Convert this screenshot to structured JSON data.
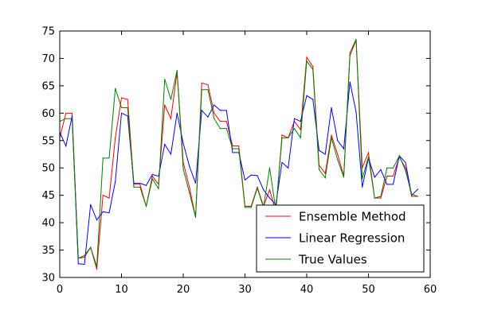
{
  "chart_data": {
    "type": "line",
    "title": "",
    "xlabel": "",
    "ylabel": "",
    "xlim": [
      0,
      60
    ],
    "ylim": [
      30,
      75
    ],
    "xticks": [
      0,
      10,
      20,
      30,
      40,
      50,
      60
    ],
    "yticks": [
      30,
      35,
      40,
      45,
      50,
      55,
      60,
      65,
      70,
      75
    ],
    "grid": false,
    "legend_position": "lower-right",
    "x": [
      0,
      1,
      2,
      3,
      4,
      5,
      6,
      7,
      8,
      9,
      10,
      11,
      12,
      13,
      14,
      15,
      16,
      17,
      18,
      19,
      20,
      21,
      22,
      23,
      24,
      25,
      26,
      27,
      28,
      29,
      30,
      31,
      32,
      33,
      34,
      35,
      36,
      37,
      38,
      39,
      40,
      41,
      42,
      43,
      44,
      45,
      46,
      47,
      48,
      49,
      50,
      51,
      52,
      53,
      54,
      55,
      56,
      57,
      58
    ],
    "series": [
      {
        "name": "Ensemble Method",
        "color": "#ff0000",
        "values": [
          55.5,
          60.0,
          60.0,
          33.5,
          33.7,
          35.5,
          31.5,
          45.0,
          44.5,
          55.5,
          62.8,
          62.5,
          47.0,
          47.0,
          43.0,
          48.5,
          47.0,
          61.5,
          59.0,
          67.5,
          51.0,
          46.5,
          41.0,
          65.5,
          65.2,
          60.0,
          58.5,
          58.5,
          54.0,
          54.0,
          43.0,
          43.0,
          46.5,
          43.0,
          46.0,
          42.0,
          56.0,
          55.5,
          58.5,
          57.0,
          70.2,
          68.5,
          50.5,
          49.0,
          56.0,
          52.5,
          48.5,
          70.5,
          73.3,
          50.0,
          52.8,
          44.5,
          44.5,
          48.5,
          48.5,
          52.0,
          50.0,
          44.8,
          44.8
        ]
      },
      {
        "name": "Linear Regression",
        "color": "#0000ff",
        "values": [
          56.5,
          54.0,
          59.5,
          32.5,
          32.4,
          43.3,
          40.5,
          42.0,
          41.8,
          47.5,
          60.0,
          59.5,
          47.2,
          47.2,
          46.8,
          48.8,
          48.5,
          54.3,
          52.5,
          60.0,
          54.5,
          50.3,
          47.2,
          60.5,
          59.3,
          61.5,
          60.5,
          60.5,
          52.8,
          52.8,
          47.8,
          48.7,
          48.6,
          46.0,
          44.5,
          43.3,
          51.0,
          50.0,
          59.0,
          58.5,
          63.2,
          62.5,
          53.2,
          52.5,
          61.0,
          55.0,
          53.5,
          65.7,
          60.2,
          46.5,
          51.8,
          48.3,
          49.7,
          47.0,
          47.0,
          52.2,
          51.0,
          45.0,
          46.1
        ]
      },
      {
        "name": "True Values",
        "color": "#008000",
        "values": [
          58.5,
          59.0,
          59.0,
          33.5,
          34.0,
          35.5,
          32.0,
          51.8,
          51.8,
          64.5,
          61.0,
          61.0,
          46.5,
          46.5,
          43.0,
          48.0,
          46.2,
          66.2,
          62.5,
          67.8,
          49.8,
          45.5,
          41.0,
          64.3,
          64.3,
          59.0,
          57.2,
          57.2,
          53.5,
          53.5,
          42.8,
          42.8,
          46.3,
          42.8,
          50.0,
          42.3,
          55.5,
          55.5,
          57.2,
          55.5,
          69.5,
          68.0,
          49.7,
          48.2,
          55.5,
          51.5,
          48.3,
          71.0,
          73.5,
          48.0,
          52.0,
          44.5,
          44.8,
          50.0,
          50.0,
          52.2,
          49.5,
          45.2,
          44.8
        ]
      }
    ]
  }
}
